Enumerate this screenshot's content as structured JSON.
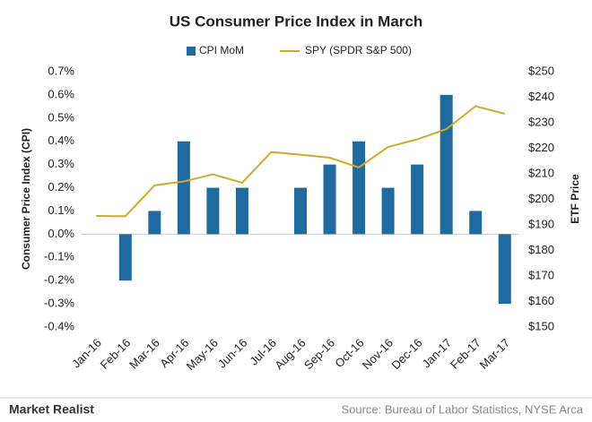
{
  "chart_data": {
    "type": "bar-line",
    "title": "US Consumer Price Index in March",
    "y_label": "Consumer Price Index (CPI)",
    "y2_label": "ETF Price",
    "source": "Source: Bureau of Labor Statistics, NYSE Arca",
    "brand": "Market Realist",
    "categories": [
      "Jan-16",
      "Feb-16",
      "Mar-16",
      "Apr-16",
      "May-16",
      "Jun-16",
      "Jul-16",
      "Aug-16",
      "Sep-16",
      "Oct-16",
      "Nov-16",
      "Dec-16",
      "Jan-17",
      "Feb-17",
      "Mar-17"
    ],
    "series": [
      {
        "name": "CPI MoM",
        "color": "#1f6a9e",
        "type": "bar",
        "values": [
          0.0,
          -0.2,
          0.1,
          0.4,
          0.2,
          0.2,
          0.0,
          0.2,
          0.3,
          0.4,
          0.2,
          0.3,
          0.6,
          0.1,
          -0.3
        ]
      },
      {
        "name": "SPY (SPDR S&P 500)",
        "color": "#d4a92a",
        "type": "line",
        "axis": "y2",
        "values": [
          193.5,
          193.4,
          205.5,
          207,
          209.8,
          206.5,
          218.5,
          217.5,
          216.3,
          212.5,
          220.5,
          223.5,
          227.5,
          236.5,
          233.5
        ]
      }
    ],
    "ylim": [
      -0.4,
      0.7
    ],
    "yticks": [
      {
        "value": 0.7,
        "label": "0.7%"
      },
      {
        "value": 0.6,
        "label": "0.6%"
      },
      {
        "value": 0.5,
        "label": "0.5%"
      },
      {
        "value": 0.4,
        "label": "0.4%"
      },
      {
        "value": 0.3,
        "label": "0.3%"
      },
      {
        "value": 0.2,
        "label": "0.2%"
      },
      {
        "value": 0.1,
        "label": "0.1%"
      },
      {
        "value": 0.0,
        "label": "0.0%"
      },
      {
        "value": -0.1,
        "label": "-0.1%"
      },
      {
        "value": -0.2,
        "label": "-0.2%"
      },
      {
        "value": -0.3,
        "label": "-0.3%"
      },
      {
        "value": -0.4,
        "label": "-0.4%"
      }
    ],
    "y2lim": [
      150,
      250
    ],
    "y2ticks": [
      {
        "value": 250,
        "label": "$250"
      },
      {
        "value": 240,
        "label": "$240"
      },
      {
        "value": 230,
        "label": "$230"
      },
      {
        "value": 220,
        "label": "$220"
      },
      {
        "value": 210,
        "label": "$210"
      },
      {
        "value": 200,
        "label": "$200"
      },
      {
        "value": 190,
        "label": "$190"
      },
      {
        "value": 180,
        "label": "$180"
      },
      {
        "value": 170,
        "label": "$170"
      },
      {
        "value": 160,
        "label": "$160"
      },
      {
        "value": 150,
        "label": "$150"
      }
    ]
  }
}
